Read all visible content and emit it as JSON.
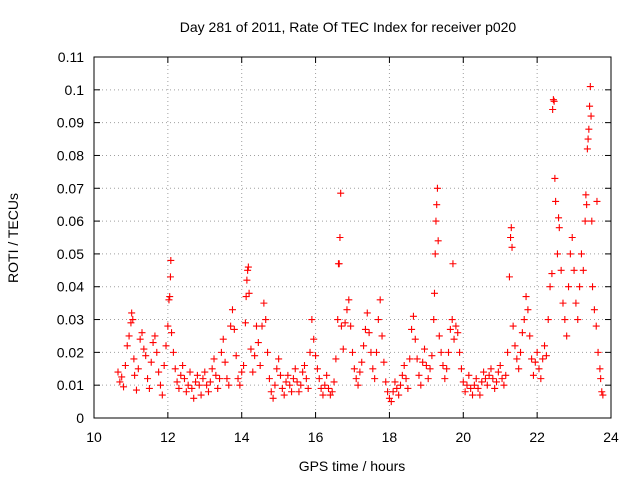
{
  "chart_data": {
    "type": "scatter",
    "title": "Day 281 of 2011, Rate Of TEC Index for receiver p020",
    "xlabel": "GPS time / hours",
    "ylabel": "ROTI / TECUs",
    "xlim": [
      10,
      24
    ],
    "ylim": [
      0,
      0.11
    ],
    "grid": true,
    "marker": "plus",
    "color": "#ff0000",
    "xticks": [
      {
        "value": 10,
        "label": "10"
      },
      {
        "value": 12,
        "label": "12"
      },
      {
        "value": 14,
        "label": "14"
      },
      {
        "value": 16,
        "label": "16"
      },
      {
        "value": 18,
        "label": "18"
      },
      {
        "value": 20,
        "label": "20"
      },
      {
        "value": 22,
        "label": "22"
      },
      {
        "value": 24,
        "label": "24"
      }
    ],
    "yticks": [
      {
        "value": 0,
        "label": "0"
      },
      {
        "value": 0.01,
        "label": "0.01"
      },
      {
        "value": 0.02,
        "label": "0.02"
      },
      {
        "value": 0.03,
        "label": "0.03"
      },
      {
        "value": 0.04,
        "label": "0.04"
      },
      {
        "value": 0.05,
        "label": "0.05"
      },
      {
        "value": 0.06,
        "label": "0.06"
      },
      {
        "value": 0.07,
        "label": "0.07"
      },
      {
        "value": 0.08,
        "label": "0.08"
      },
      {
        "value": 0.09,
        "label": "0.09"
      },
      {
        "value": 0.1,
        "label": "0.1"
      },
      {
        "value": 0.11,
        "label": "0.11"
      }
    ],
    "points": [
      [
        10.65,
        0.014
      ],
      [
        10.7,
        0.011
      ],
      [
        10.75,
        0.0125
      ],
      [
        10.8,
        0.0095
      ],
      [
        10.85,
        0.016
      ],
      [
        10.9,
        0.022
      ],
      [
        10.95,
        0.025
      ],
      [
        11.0,
        0.029
      ],
      [
        11.02,
        0.032
      ],
      [
        11.05,
        0.03
      ],
      [
        11.08,
        0.018
      ],
      [
        11.1,
        0.013
      ],
      [
        11.15,
        0.0085
      ],
      [
        11.2,
        0.015
      ],
      [
        11.25,
        0.024
      ],
      [
        11.3,
        0.026
      ],
      [
        11.35,
        0.021
      ],
      [
        11.4,
        0.019
      ],
      [
        11.45,
        0.012
      ],
      [
        11.5,
        0.009
      ],
      [
        11.55,
        0.017
      ],
      [
        11.6,
        0.023
      ],
      [
        11.65,
        0.025
      ],
      [
        11.7,
        0.02
      ],
      [
        11.75,
        0.014
      ],
      [
        11.8,
        0.01
      ],
      [
        11.85,
        0.007
      ],
      [
        11.9,
        0.016
      ],
      [
        11.95,
        0.022
      ],
      [
        12.0,
        0.028
      ],
      [
        12.03,
        0.036
      ],
      [
        12.05,
        0.037
      ],
      [
        12.07,
        0.043
      ],
      [
        12.08,
        0.048
      ],
      [
        12.1,
        0.026
      ],
      [
        12.15,
        0.02
      ],
      [
        12.2,
        0.015
      ],
      [
        12.25,
        0.011
      ],
      [
        12.3,
        0.009
      ],
      [
        12.35,
        0.013
      ],
      [
        12.4,
        0.016
      ],
      [
        12.45,
        0.012
      ],
      [
        12.5,
        0.008
      ],
      [
        12.55,
        0.01
      ],
      [
        12.6,
        0.014
      ],
      [
        12.65,
        0.009
      ],
      [
        12.7,
        0.006
      ],
      [
        12.75,
        0.011
      ],
      [
        12.8,
        0.013
      ],
      [
        12.85,
        0.01
      ],
      [
        12.9,
        0.007
      ],
      [
        12.95,
        0.012
      ],
      [
        13.0,
        0.014
      ],
      [
        13.05,
        0.01
      ],
      [
        13.1,
        0.008
      ],
      [
        13.15,
        0.011
      ],
      [
        13.2,
        0.015
      ],
      [
        13.25,
        0.018
      ],
      [
        13.3,
        0.013
      ],
      [
        13.35,
        0.009
      ],
      [
        13.4,
        0.012
      ],
      [
        13.45,
        0.02
      ],
      [
        13.5,
        0.024
      ],
      [
        13.55,
        0.017
      ],
      [
        13.6,
        0.012
      ],
      [
        13.65,
        0.01
      ],
      [
        13.7,
        0.028
      ],
      [
        13.75,
        0.033
      ],
      [
        13.8,
        0.027
      ],
      [
        13.85,
        0.019
      ],
      [
        13.9,
        0.012
      ],
      [
        13.95,
        0.01
      ],
      [
        14.0,
        0.014
      ],
      [
        14.05,
        0.016
      ],
      [
        14.1,
        0.029
      ],
      [
        14.12,
        0.037
      ],
      [
        14.14,
        0.042
      ],
      [
        14.16,
        0.045
      ],
      [
        14.18,
        0.046
      ],
      [
        14.2,
        0.038
      ],
      [
        14.25,
        0.021
      ],
      [
        14.3,
        0.014
      ],
      [
        14.35,
        0.019
      ],
      [
        14.4,
        0.028
      ],
      [
        14.45,
        0.023
      ],
      [
        14.5,
        0.016
      ],
      [
        14.55,
        0.028
      ],
      [
        14.6,
        0.035
      ],
      [
        14.65,
        0.03
      ],
      [
        14.7,
        0.02
      ],
      [
        14.75,
        0.012
      ],
      [
        14.8,
        0.008
      ],
      [
        14.85,
        0.006
      ],
      [
        14.9,
        0.01
      ],
      [
        14.95,
        0.015
      ],
      [
        15.0,
        0.018
      ],
      [
        15.05,
        0.013
      ],
      [
        15.1,
        0.009
      ],
      [
        15.15,
        0.007
      ],
      [
        15.2,
        0.011
      ],
      [
        15.25,
        0.013
      ],
      [
        15.3,
        0.01
      ],
      [
        15.35,
        0.008
      ],
      [
        15.4,
        0.012
      ],
      [
        15.45,
        0.015
      ],
      [
        15.5,
        0.011
      ],
      [
        15.55,
        0.008
      ],
      [
        15.6,
        0.01
      ],
      [
        15.65,
        0.014
      ],
      [
        15.7,
        0.016
      ],
      [
        15.75,
        0.012
      ],
      [
        15.8,
        0.009
      ],
      [
        15.85,
        0.02
      ],
      [
        15.9,
        0.03
      ],
      [
        15.95,
        0.024
      ],
      [
        16.0,
        0.019
      ],
      [
        16.05,
        0.015
      ],
      [
        16.1,
        0.012
      ],
      [
        16.15,
        0.009
      ],
      [
        16.2,
        0.007
      ],
      [
        16.25,
        0.01
      ],
      [
        16.3,
        0.013
      ],
      [
        16.35,
        0.009
      ],
      [
        16.4,
        0.007
      ],
      [
        16.45,
        0.008
      ],
      [
        16.5,
        0.011
      ],
      [
        16.55,
        0.018
      ],
      [
        16.6,
        0.03
      ],
      [
        16.62,
        0.047
      ],
      [
        16.64,
        0.047
      ],
      [
        16.66,
        0.055
      ],
      [
        16.68,
        0.0685
      ],
      [
        16.7,
        0.028
      ],
      [
        16.75,
        0.021
      ],
      [
        16.8,
        0.029
      ],
      [
        16.85,
        0.033
      ],
      [
        16.9,
        0.036
      ],
      [
        16.95,
        0.028
      ],
      [
        17.0,
        0.02
      ],
      [
        17.05,
        0.015
      ],
      [
        17.1,
        0.012
      ],
      [
        17.15,
        0.01
      ],
      [
        17.2,
        0.014
      ],
      [
        17.25,
        0.017
      ],
      [
        17.3,
        0.022
      ],
      [
        17.35,
        0.027
      ],
      [
        17.4,
        0.032
      ],
      [
        17.45,
        0.026
      ],
      [
        17.5,
        0.02
      ],
      [
        17.55,
        0.015
      ],
      [
        17.6,
        0.012
      ],
      [
        17.65,
        0.02
      ],
      [
        17.7,
        0.03
      ],
      [
        17.75,
        0.036
      ],
      [
        17.8,
        0.025
      ],
      [
        17.85,
        0.017
      ],
      [
        17.9,
        0.011
      ],
      [
        17.95,
        0.008
      ],
      [
        18.0,
        0.006
      ],
      [
        18.05,
        0.005
      ],
      [
        18.1,
        0.008
      ],
      [
        18.15,
        0.011
      ],
      [
        18.2,
        0.009
      ],
      [
        18.25,
        0.007
      ],
      [
        18.3,
        0.01
      ],
      [
        18.35,
        0.013
      ],
      [
        18.4,
        0.016
      ],
      [
        18.45,
        0.012
      ],
      [
        18.5,
        0.009
      ],
      [
        18.55,
        0.018
      ],
      [
        18.6,
        0.027
      ],
      [
        18.65,
        0.031
      ],
      [
        18.7,
        0.024
      ],
      [
        18.75,
        0.018
      ],
      [
        18.8,
        0.013
      ],
      [
        18.85,
        0.01
      ],
      [
        18.9,
        0.017
      ],
      [
        18.95,
        0.021
      ],
      [
        19.0,
        0.016
      ],
      [
        19.05,
        0.012
      ],
      [
        19.1,
        0.015
      ],
      [
        19.15,
        0.019
      ],
      [
        19.2,
        0.03
      ],
      [
        19.22,
        0.038
      ],
      [
        19.24,
        0.05
      ],
      [
        19.26,
        0.06
      ],
      [
        19.28,
        0.065
      ],
      [
        19.3,
        0.07
      ],
      [
        19.32,
        0.054
      ],
      [
        19.35,
        0.025
      ],
      [
        19.4,
        0.02
      ],
      [
        19.45,
        0.016
      ],
      [
        19.5,
        0.012
      ],
      [
        19.55,
        0.015
      ],
      [
        19.6,
        0.02
      ],
      [
        19.65,
        0.027
      ],
      [
        19.7,
        0.03
      ],
      [
        19.72,
        0.047
      ],
      [
        19.75,
        0.024
      ],
      [
        19.8,
        0.028
      ],
      [
        19.85,
        0.026
      ],
      [
        19.9,
        0.02
      ],
      [
        19.95,
        0.015
      ],
      [
        20.0,
        0.011
      ],
      [
        20.05,
        0.008
      ],
      [
        20.1,
        0.01
      ],
      [
        20.15,
        0.013
      ],
      [
        20.2,
        0.009
      ],
      [
        20.25,
        0.007
      ],
      [
        20.3,
        0.01
      ],
      [
        20.35,
        0.012
      ],
      [
        20.4,
        0.009
      ],
      [
        20.45,
        0.007
      ],
      [
        20.5,
        0.011
      ],
      [
        20.55,
        0.014
      ],
      [
        20.6,
        0.012
      ],
      [
        20.65,
        0.01
      ],
      [
        20.7,
        0.013
      ],
      [
        20.75,
        0.015
      ],
      [
        20.8,
        0.012
      ],
      [
        20.85,
        0.009
      ],
      [
        20.9,
        0.011
      ],
      [
        20.95,
        0.014
      ],
      [
        21.0,
        0.016
      ],
      [
        21.05,
        0.012
      ],
      [
        21.1,
        0.01
      ],
      [
        21.15,
        0.013
      ],
      [
        21.2,
        0.02
      ],
      [
        21.25,
        0.043
      ],
      [
        21.28,
        0.055
      ],
      [
        21.3,
        0.058
      ],
      [
        21.32,
        0.052
      ],
      [
        21.35,
        0.028
      ],
      [
        21.4,
        0.022
      ],
      [
        21.45,
        0.018
      ],
      [
        21.5,
        0.015
      ],
      [
        21.55,
        0.02
      ],
      [
        21.6,
        0.026
      ],
      [
        21.65,
        0.03
      ],
      [
        21.7,
        0.037
      ],
      [
        21.75,
        0.033
      ],
      [
        21.8,
        0.025
      ],
      [
        21.85,
        0.018
      ],
      [
        21.9,
        0.013
      ],
      [
        21.95,
        0.017
      ],
      [
        22.0,
        0.02
      ],
      [
        22.05,
        0.015
      ],
      [
        22.1,
        0.012
      ],
      [
        22.15,
        0.018
      ],
      [
        22.2,
        0.022
      ],
      [
        22.25,
        0.019
      ],
      [
        22.3,
        0.03
      ],
      [
        22.35,
        0.04
      ],
      [
        22.4,
        0.044
      ],
      [
        22.42,
        0.094
      ],
      [
        22.44,
        0.097
      ],
      [
        22.46,
        0.0965
      ],
      [
        22.48,
        0.073
      ],
      [
        22.5,
        0.066
      ],
      [
        22.55,
        0.05
      ],
      [
        22.58,
        0.061
      ],
      [
        22.6,
        0.058
      ],
      [
        22.65,
        0.045
      ],
      [
        22.7,
        0.035
      ],
      [
        22.75,
        0.03
      ],
      [
        22.8,
        0.025
      ],
      [
        22.85,
        0.04
      ],
      [
        22.9,
        0.05
      ],
      [
        22.95,
        0.055
      ],
      [
        23.0,
        0.045
      ],
      [
        23.05,
        0.035
      ],
      [
        23.1,
        0.03
      ],
      [
        23.15,
        0.04
      ],
      [
        23.2,
        0.05
      ],
      [
        23.25,
        0.045
      ],
      [
        23.3,
        0.06
      ],
      [
        23.32,
        0.068
      ],
      [
        23.34,
        0.065
      ],
      [
        23.36,
        0.082
      ],
      [
        23.38,
        0.085
      ],
      [
        23.4,
        0.088
      ],
      [
        23.42,
        0.095
      ],
      [
        23.44,
        0.101
      ],
      [
        23.46,
        0.092
      ],
      [
        23.48,
        0.06
      ],
      [
        23.5,
        0.04
      ],
      [
        23.55,
        0.033
      ],
      [
        23.6,
        0.028
      ],
      [
        23.62,
        0.066
      ],
      [
        23.65,
        0.02
      ],
      [
        23.7,
        0.015
      ],
      [
        23.72,
        0.012
      ],
      [
        23.75,
        0.008
      ],
      [
        23.78,
        0.007
      ]
    ]
  }
}
